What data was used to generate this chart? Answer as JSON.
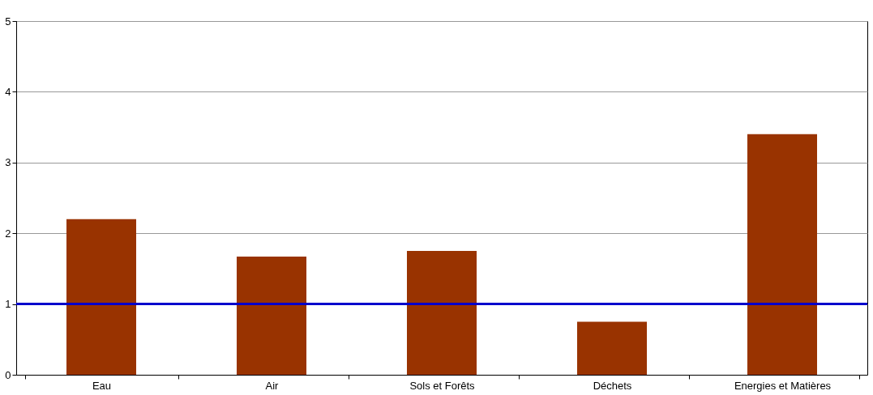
{
  "chart_data": {
    "type": "bar",
    "categories": [
      "Eau",
      "Air",
      "Sols et Forêts",
      "Déchets",
      "Energies et Matières"
    ],
    "values": [
      2.2,
      1.67,
      1.75,
      0.75,
      3.4
    ],
    "color": "#993300",
    "ylim": [
      0,
      5
    ],
    "yticks": [
      0,
      1,
      2,
      3,
      4,
      5
    ],
    "grid": "y",
    "ref_lines": [
      {
        "axis": "y",
        "value": 1,
        "color": "#0000cc",
        "line_style": "solid"
      }
    ]
  }
}
